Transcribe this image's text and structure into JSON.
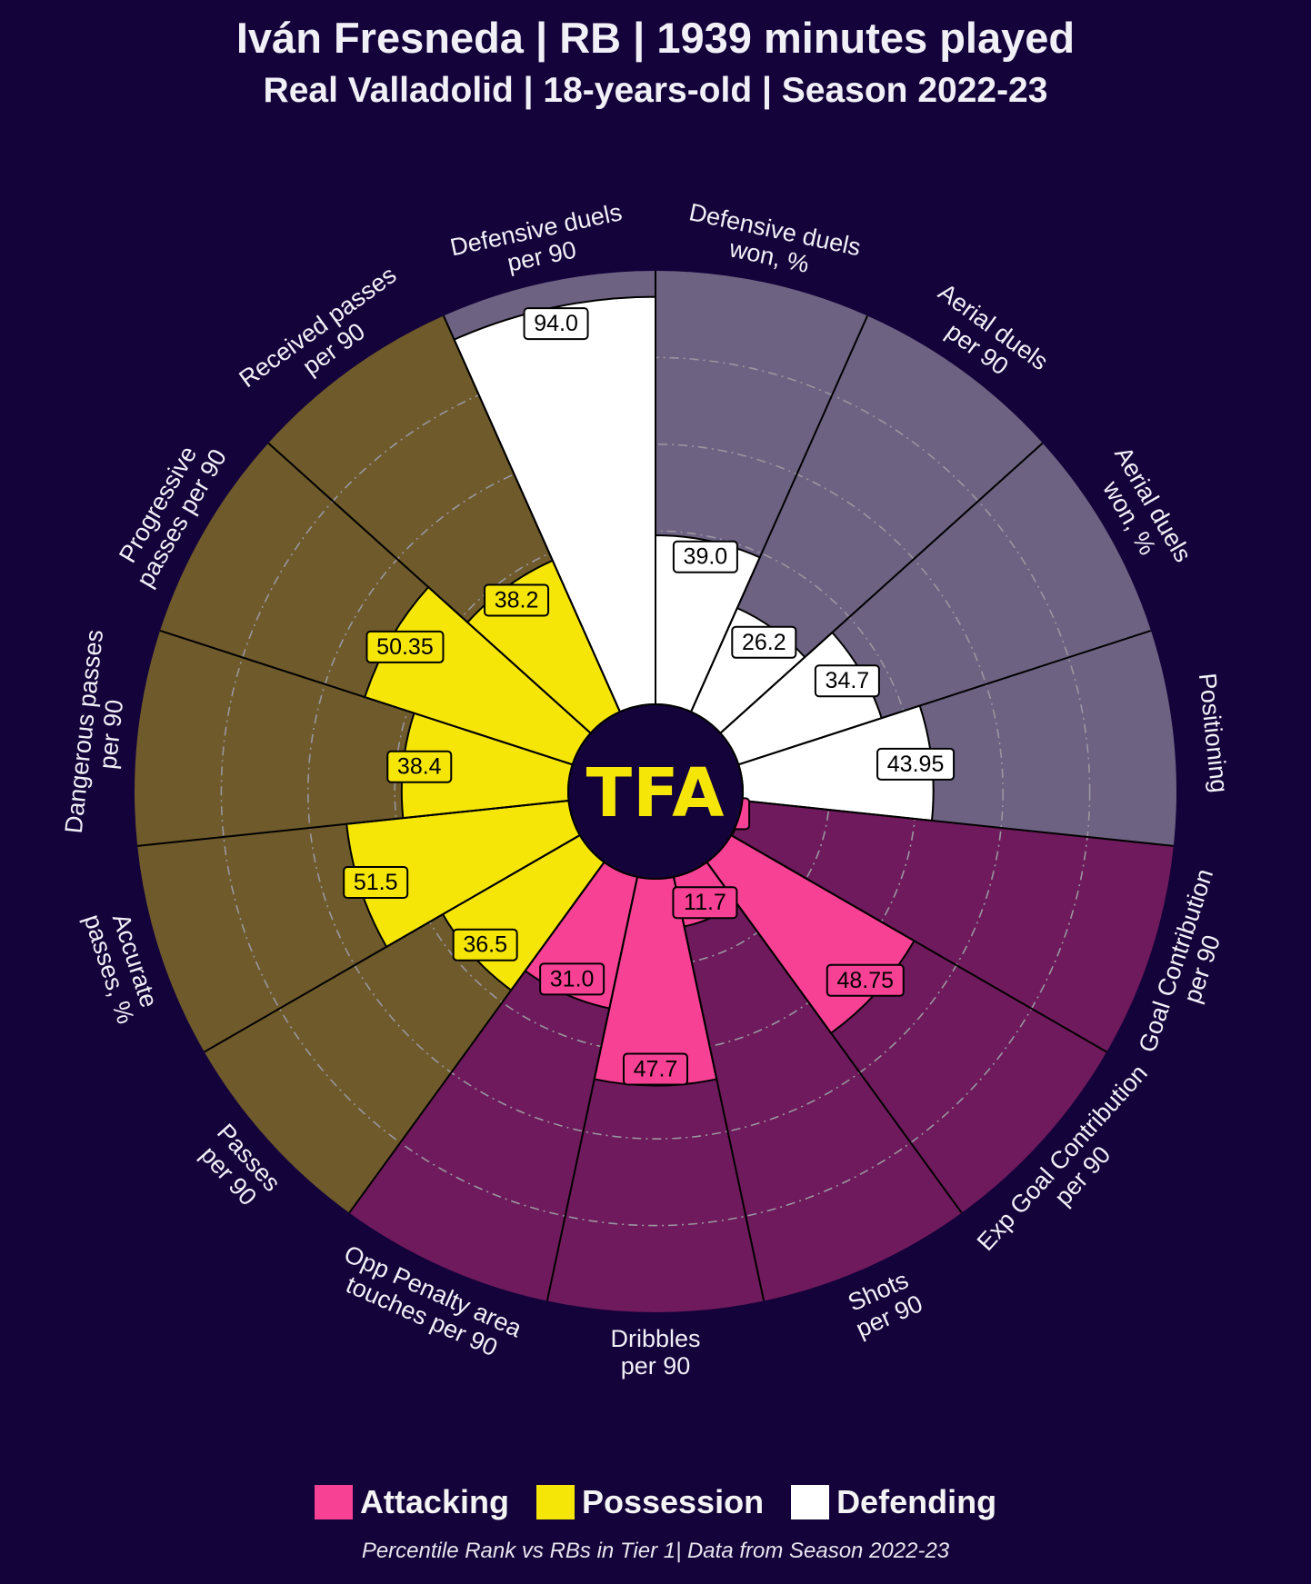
{
  "header": {
    "title": "Iván Fresneda | RB | 1939 minutes played",
    "subtitle": "Real Valladolid | 18-years-old | Season 2022-23"
  },
  "logo": {
    "text": "TFA",
    "color": "#f5e608"
  },
  "colors": {
    "background": "#14023a",
    "attacking": "#f74195",
    "possession": "#f5e608",
    "defending": "#ffffff",
    "attacking_bg": "#6e1a5c",
    "possession_bg": "#6e5a2a",
    "defending_bg": "#6d6282",
    "label_text": "#f2f0f7"
  },
  "legend": [
    {
      "label": "Attacking",
      "color": "#f74195"
    },
    {
      "label": "Possession",
      "color": "#f5e608"
    },
    {
      "label": "Defending",
      "color": "#ffffff"
    }
  ],
  "footnote": "Percentile Rank vs RBs in Tier 1| Data from Season 2022-23",
  "chart_data": {
    "type": "pizza",
    "scale": [
      0,
      100
    ],
    "grid": true,
    "legend_position": "bottom",
    "series": [
      {
        "name": "Attacking",
        "color": "#f74195"
      },
      {
        "name": "Possession",
        "color": "#f5e608"
      },
      {
        "name": "Defending",
        "color": "#ffffff"
      }
    ],
    "params": [
      {
        "label": [
          "Goal Contribution",
          "per 90"
        ],
        "value": 0.2,
        "display": "0.2",
        "group": "attacking"
      },
      {
        "label": [
          "Exp Goal Contribution",
          "per 90"
        ],
        "value": 48.75,
        "display": "48.75",
        "group": "attacking"
      },
      {
        "label": [
          "Shots",
          "per 90"
        ],
        "value": 11.7,
        "display": "11.7",
        "group": "attacking"
      },
      {
        "label": [
          "Dribbles",
          "per 90"
        ],
        "value": 47.7,
        "display": "47.7",
        "group": "attacking"
      },
      {
        "label": [
          "Opp Penalty area",
          "touches per 90"
        ],
        "value": 31.0,
        "display": "31.0",
        "group": "attacking"
      },
      {
        "label": [
          "Passes",
          "per 90"
        ],
        "value": 36.5,
        "display": "36.5",
        "group": "possession"
      },
      {
        "label": [
          "Accurate",
          "passes, %"
        ],
        "value": 51.5,
        "display": "51.5",
        "group": "possession"
      },
      {
        "label": [
          "Dangerous passes",
          "per 90"
        ],
        "value": 38.4,
        "display": "38.4",
        "group": "possession"
      },
      {
        "label": [
          "Progressive",
          "passes per 90"
        ],
        "value": 50.35,
        "display": "50.35",
        "group": "possession"
      },
      {
        "label": [
          "Received passes",
          "per 90"
        ],
        "value": 38.2,
        "display": "38.2",
        "group": "possession"
      },
      {
        "label": [
          "Defensive duels",
          "per 90"
        ],
        "value": 94.0,
        "display": "94.0",
        "group": "defending"
      },
      {
        "label": [
          "Defensive duels",
          "won, %"
        ],
        "value": 39.0,
        "display": "39.0",
        "group": "defending"
      },
      {
        "label": [
          "Aerial duels",
          "per 90"
        ],
        "value": 26.2,
        "display": "26.2",
        "group": "defending"
      },
      {
        "label": [
          "Aerial duels",
          "won, %"
        ],
        "value": 34.7,
        "display": "34.7",
        "group": "defending"
      },
      {
        "label": [
          "Positioning"
        ],
        "value": 43.95,
        "display": "43.95",
        "group": "defending"
      }
    ]
  }
}
